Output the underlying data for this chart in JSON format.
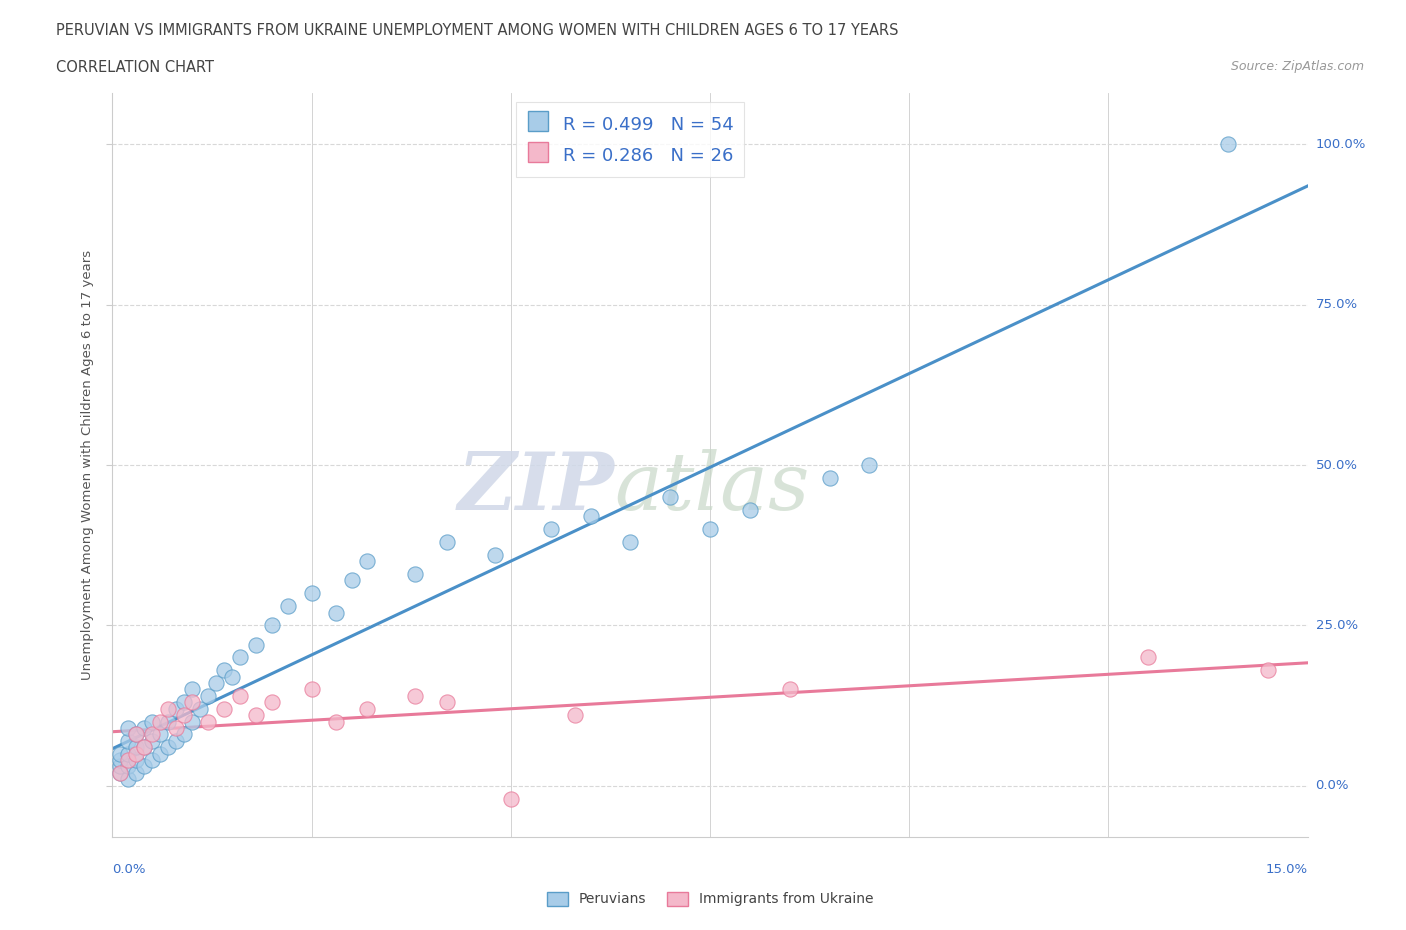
{
  "title_line1": "PERUVIAN VS IMMIGRANTS FROM UKRAINE UNEMPLOYMENT AMONG WOMEN WITH CHILDREN AGES 6 TO 17 YEARS",
  "title_line2": "CORRELATION CHART",
  "source_text": "Source: ZipAtlas.com",
  "ylabel_label": "Unemployment Among Women with Children Ages 6 to 17 years",
  "legend_label1": "Peruvians",
  "legend_label2": "Immigrants from Ukraine",
  "watermark_zip": "ZIP",
  "watermark_atlas": "atlas",
  "blue_R": 0.499,
  "blue_N": 54,
  "pink_R": 0.286,
  "pink_N": 26,
  "blue_color": "#a8cce8",
  "pink_color": "#f4b8ca",
  "blue_edge_color": "#5a9dc8",
  "pink_edge_color": "#e87a9a",
  "blue_line_color": "#4a90c8",
  "pink_line_color": "#e87a9a",
  "text_color": "#3a6fc8",
  "axis_color": "#cccccc",
  "grid_color": "#d8d8d8",
  "blue_scatter_x": [
    0.001,
    0.001,
    0.001,
    0.001,
    0.002,
    0.002,
    0.002,
    0.002,
    0.002,
    0.003,
    0.003,
    0.003,
    0.003,
    0.004,
    0.004,
    0.004,
    0.005,
    0.005,
    0.005,
    0.006,
    0.006,
    0.007,
    0.007,
    0.008,
    0.008,
    0.009,
    0.009,
    0.01,
    0.01,
    0.011,
    0.012,
    0.013,
    0.014,
    0.015,
    0.016,
    0.018,
    0.02,
    0.022,
    0.025,
    0.028,
    0.03,
    0.032,
    0.038,
    0.042,
    0.048,
    0.055,
    0.06,
    0.065,
    0.07,
    0.075,
    0.08,
    0.09,
    0.095,
    0.14
  ],
  "blue_scatter_y": [
    0.02,
    0.03,
    0.04,
    0.05,
    0.01,
    0.03,
    0.05,
    0.07,
    0.09,
    0.02,
    0.04,
    0.06,
    0.08,
    0.03,
    0.06,
    0.09,
    0.04,
    0.07,
    0.1,
    0.05,
    0.08,
    0.06,
    0.1,
    0.07,
    0.12,
    0.08,
    0.13,
    0.1,
    0.15,
    0.12,
    0.14,
    0.16,
    0.18,
    0.17,
    0.2,
    0.22,
    0.25,
    0.28,
    0.3,
    0.27,
    0.32,
    0.35,
    0.33,
    0.38,
    0.36,
    0.4,
    0.42,
    0.38,
    0.45,
    0.4,
    0.43,
    0.48,
    0.5,
    1.0
  ],
  "pink_scatter_x": [
    0.001,
    0.002,
    0.003,
    0.003,
    0.004,
    0.005,
    0.006,
    0.007,
    0.008,
    0.009,
    0.01,
    0.012,
    0.014,
    0.016,
    0.018,
    0.02,
    0.025,
    0.028,
    0.032,
    0.038,
    0.042,
    0.05,
    0.058,
    0.085,
    0.13,
    0.145
  ],
  "pink_scatter_y": [
    0.02,
    0.04,
    0.05,
    0.08,
    0.06,
    0.08,
    0.1,
    0.12,
    0.09,
    0.11,
    0.13,
    0.1,
    0.12,
    0.14,
    0.11,
    0.13,
    0.15,
    0.1,
    0.12,
    0.14,
    0.13,
    -0.02,
    0.11,
    0.15,
    0.2,
    0.18
  ],
  "xmin": 0.0,
  "xmax": 0.15,
  "ymin": -0.08,
  "ymax": 1.08,
  "yticks": [
    0.0,
    0.25,
    0.5,
    0.75,
    1.0
  ],
  "ytick_labels": [
    "0.0%",
    "25.0%",
    "50.0%",
    "75.0%",
    "100.0%"
  ]
}
